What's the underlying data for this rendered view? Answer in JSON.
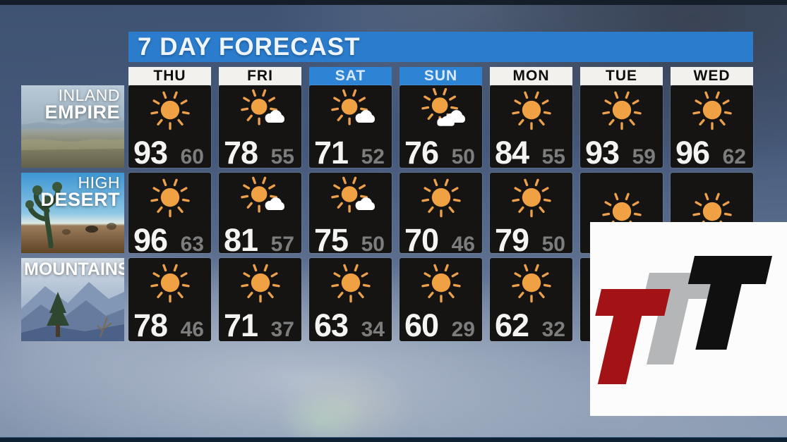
{
  "title": "7 DAY FORECAST",
  "days": [
    {
      "label": "THU",
      "highlight": false
    },
    {
      "label": "FRI",
      "highlight": false
    },
    {
      "label": "SAT",
      "highlight": true
    },
    {
      "label": "SUN",
      "highlight": true
    },
    {
      "label": "MON",
      "highlight": false
    },
    {
      "label": "TUE",
      "highlight": false
    },
    {
      "label": "WED",
      "highlight": false
    }
  ],
  "regions": [
    {
      "name": "inland-empire",
      "lines": [
        "INLAND",
        "EMPIRE"
      ]
    },
    {
      "name": "high-desert",
      "lines": [
        "HIGH",
        "DESERT"
      ]
    },
    {
      "name": "mountains",
      "lines": [
        "",
        "MOUNTAINS"
      ]
    }
  ],
  "forecast": {
    "rows": [
      {
        "region": "Inland Empire",
        "cells": [
          {
            "icon": "sun",
            "high": "93",
            "low": "60"
          },
          {
            "icon": "sun-cloud",
            "high": "78",
            "low": "55"
          },
          {
            "icon": "sun-cloud",
            "high": "71",
            "low": "52"
          },
          {
            "icon": "sun-clouds",
            "high": "76",
            "low": "50"
          },
          {
            "icon": "sun",
            "high": "84",
            "low": "55"
          },
          {
            "icon": "sun",
            "high": "93",
            "low": "59"
          },
          {
            "icon": "sun",
            "high": "96",
            "low": "62"
          }
        ]
      },
      {
        "region": "High Desert",
        "cells": [
          {
            "icon": "sun",
            "high": "96",
            "low": "63"
          },
          {
            "icon": "sun-cloud",
            "high": "81",
            "low": "57"
          },
          {
            "icon": "sun-cloud",
            "high": "75",
            "low": "50"
          },
          {
            "icon": "sun",
            "high": "70",
            "low": "46"
          },
          {
            "icon": "sun",
            "high": "79",
            "low": "50"
          },
          {
            "icon": "sun",
            "high": null,
            "low": null
          },
          {
            "icon": "sun",
            "high": null,
            "low": null
          }
        ]
      },
      {
        "region": "Mountains",
        "cells": [
          {
            "icon": "sun",
            "high": "78",
            "low": "46"
          },
          {
            "icon": "sun",
            "high": "71",
            "low": "37"
          },
          {
            "icon": "sun",
            "high": "63",
            "low": "34"
          },
          {
            "icon": "sun",
            "high": "60",
            "low": "29"
          },
          {
            "icon": "sun",
            "high": "62",
            "low": "32"
          },
          {
            "icon": null,
            "high": null,
            "low": null
          },
          {
            "icon": null,
            "high": null,
            "low": null
          }
        ]
      }
    ]
  },
  "logo": {
    "letters": [
      {
        "name": "t-red",
        "color": "#a31214"
      },
      {
        "name": "t-gray",
        "color": "#b5b6b8"
      },
      {
        "name": "t-black",
        "color": "#101010"
      }
    ]
  },
  "colors": {
    "title_bar": "#2b7ccc",
    "header_highlight": "#2e84d4",
    "header_plain": "#f2f1ee",
    "cell_bg": "#151412",
    "high_temp": "#f4f4f2",
    "low_temp": "#7d7d7d",
    "sun": "#f0a144"
  }
}
